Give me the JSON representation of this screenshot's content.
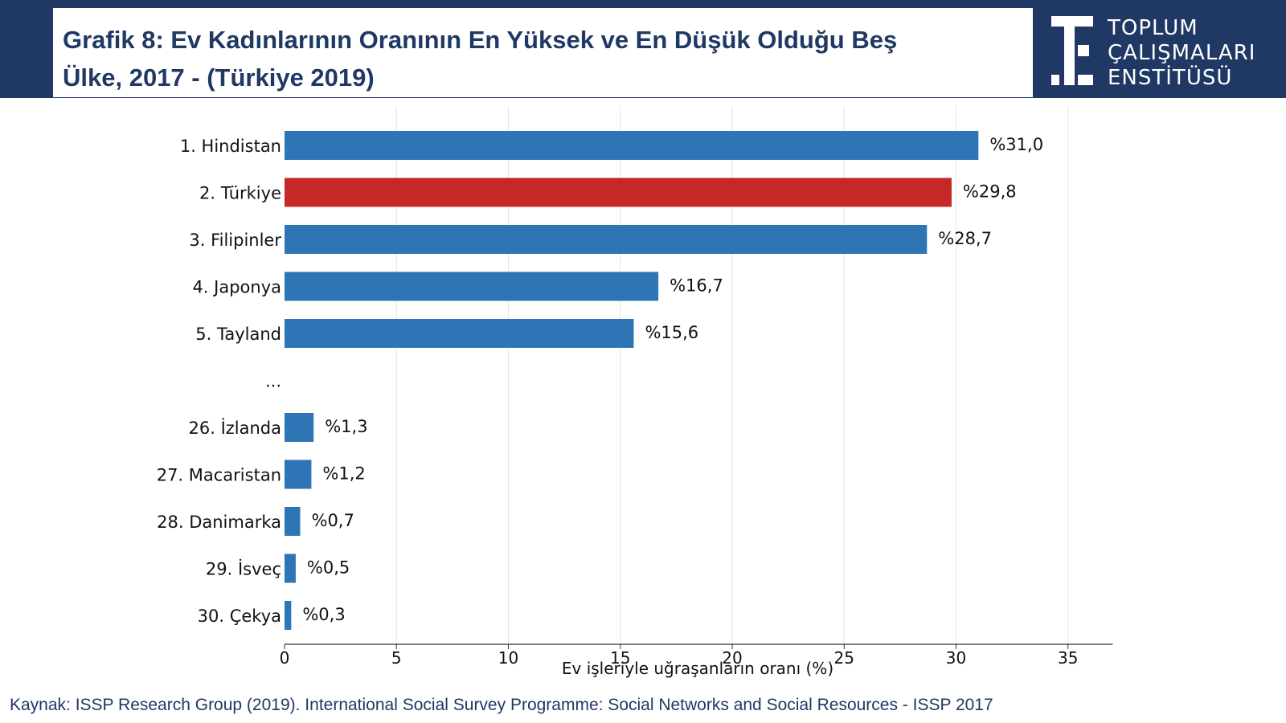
{
  "header": {
    "title_line1": "Grafik 8: Ev Kadınlarının Oranının En Yüksek ve En Düşük Olduğu Beş",
    "title_line2": "Ülke, 2017 - (Türkiye 2019)",
    "logo_line1": "TOPLUM",
    "logo_line2": "ÇALIŞMALARI",
    "logo_line3": "ENSTİTÜSÜ"
  },
  "chart_data": {
    "type": "bar",
    "orientation": "horizontal",
    "categories": [
      "1. Hindistan",
      "2. Türkiye",
      "3. Filipinler",
      "4. Japonya",
      "5. Tayland",
      "...",
      "26. İzlanda",
      "27. Macaristan",
      "28. Danimarka",
      "29. İsveç",
      "30. Çekya"
    ],
    "values": [
      31.0,
      29.8,
      28.7,
      16.7,
      15.6,
      null,
      1.3,
      1.2,
      0.7,
      0.5,
      0.3
    ],
    "value_labels": [
      "%31,0",
      "%29,8",
      "%28,7",
      "%16,7",
      "%15,6",
      "",
      "%1,3",
      "%1,2",
      "%0,7",
      "%0,5",
      "%0,3"
    ],
    "highlight_category": "2. Türkiye",
    "xlabel": "Ev işleriyle uğraşanların oranı (%)",
    "ylabel": "",
    "xlim": [
      0,
      37
    ],
    "xticks": [
      0,
      5,
      10,
      15,
      20,
      25,
      30,
      35
    ],
    "grid": "vertical",
    "colors": {
      "default": "#2e75b6",
      "highlight": "#c62828"
    }
  },
  "footer": {
    "source": "Kaynak: ISSP Research Group (2019). International Social Survey Programme: Social Networks and Social Resources - ISSP 2017"
  }
}
